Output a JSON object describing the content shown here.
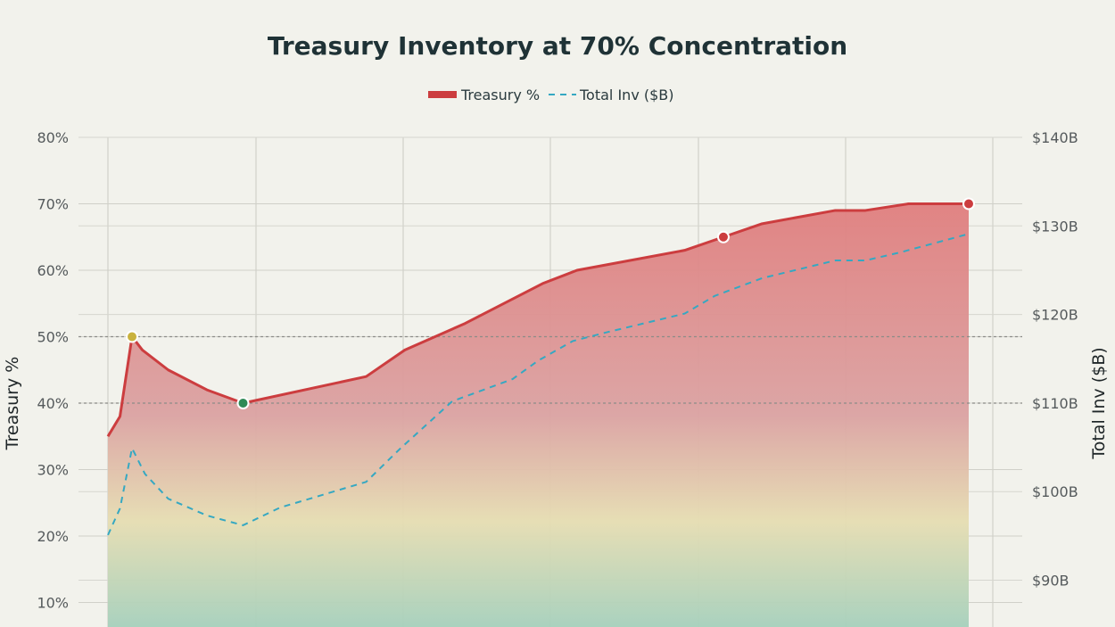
{
  "chart_data": {
    "type": "area",
    "title": "Treasury Inventory at 70% Concentration",
    "legend": {
      "placement": "top-center",
      "entries": [
        "Treasury %",
        "Total Inv ($B)"
      ]
    },
    "grid": true,
    "y_left": {
      "label": "Treasury %",
      "range": [
        0,
        80
      ],
      "tick_labels": [
        "80%",
        "70%",
        "60%",
        "50%",
        "40%",
        "30%",
        "20%",
        "10%"
      ]
    },
    "y_right": {
      "label": "Total Inv ($B)",
      "range": [
        80,
        140
      ],
      "tick_labels": [
        "$140B",
        "$130B",
        "$120B",
        "$110B",
        "$100B",
        "$90B"
      ]
    },
    "reference_lines": [
      50,
      40
    ],
    "x_range": [
      0,
      1
    ],
    "series": [
      {
        "name": "Treasury %",
        "axis": "left",
        "color": "#cc3d3f",
        "style": "solid",
        "points": [
          [
            0,
            35
          ],
          [
            0.014,
            38
          ],
          [
            0.028,
            50
          ],
          [
            0.04,
            48
          ],
          [
            0.07,
            45
          ],
          [
            0.115,
            42
          ],
          [
            0.157,
            40
          ],
          [
            0.3,
            44
          ],
          [
            0.345,
            48
          ],
          [
            0.415,
            52
          ],
          [
            0.505,
            58
          ],
          [
            0.545,
            60
          ],
          [
            0.67,
            63
          ],
          [
            0.715,
            65
          ],
          [
            0.76,
            67
          ],
          [
            0.845,
            69
          ],
          [
            0.88,
            69
          ],
          [
            0.93,
            70
          ],
          [
            1.0,
            70
          ]
        ]
      },
      {
        "name": "Total Inv ($B)",
        "axis": "right",
        "color": "#35a8c2",
        "style": "dashed",
        "points": [
          [
            0,
            95.1
          ],
          [
            0.014,
            98.1
          ],
          [
            0.028,
            104.9
          ],
          [
            0.043,
            102
          ],
          [
            0.07,
            99.2
          ],
          [
            0.115,
            97.3
          ],
          [
            0.157,
            96.2
          ],
          [
            0.2,
            98.2
          ],
          [
            0.3,
            101.1
          ],
          [
            0.34,
            104.9
          ],
          [
            0.4,
            110.2
          ],
          [
            0.47,
            112.7
          ],
          [
            0.5,
            114.8
          ],
          [
            0.54,
            117
          ],
          [
            0.58,
            118
          ],
          [
            0.67,
            120.1
          ],
          [
            0.705,
            122.1
          ],
          [
            0.76,
            124.1
          ],
          [
            0.845,
            126.1
          ],
          [
            0.88,
            126.1
          ],
          [
            0.92,
            127
          ],
          [
            1.0,
            129.1
          ]
        ]
      }
    ],
    "highlight_markers": [
      {
        "series": "Treasury %",
        "x": 0.028,
        "y": 50,
        "color": "#c9b23e"
      },
      {
        "series": "Treasury %",
        "x": 0.157,
        "y": 40,
        "color": "#2f8a56"
      },
      {
        "series": "Treasury %",
        "x": 0.715,
        "y": 65,
        "color": "#cc3d3f"
      },
      {
        "series": "Treasury %",
        "x": 1.0,
        "y": 70,
        "color": "#cc3d3f"
      }
    ],
    "fill_gradient": [
      "#e07e7e",
      "#dba2a2",
      "#e6ddb2",
      "#a6d0bc"
    ]
  }
}
